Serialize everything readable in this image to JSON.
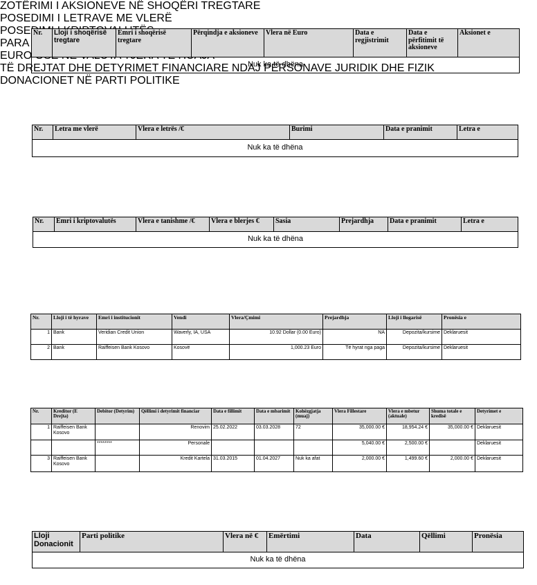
{
  "sections": [
    {
      "title": "ZOTËRIMI I AKSIONEVE NË SHOQËRI TREGTARE",
      "columns": [
        "Nr.",
        "Lloji i shoqërisë tregtare",
        "Emri i shoqërisë tregtare",
        "Përqindja e aksioneve",
        "Vlera në Euro",
        "Data e regjistrimit",
        "Data e përfitimit të aksioneve",
        "Aksionet e"
      ],
      "empty": "Nuk ka të dhëna"
    },
    {
      "title": "POSEDIMI I LETRAVE ME VLERË",
      "columns": [
        "Nr.",
        "Letra me vlerë",
        "Vlera e letrës /€",
        "Burimi",
        "Data e pranimit",
        "Letra e"
      ],
      "empty": "Nuk ka të dhëna"
    },
    {
      "title": "POSEDIMI I KRIPTOVALUTËS",
      "columns": [
        "Nr.",
        "Emri i kriptovalutës",
        "Vlera e tanishme /€",
        "Vlera e blerjes €",
        "Sasia",
        "Prejardhja",
        "Data e pranimit",
        "Letra e"
      ],
      "empty": "Nuk ka të dhëna"
    },
    {
      "title": "PARA TË GATSHME NË LLOGARI RRJEDHËSE, NË DEPOZITA DHE NË HUADHËNIE NË EURO OSE NË VALUTA TJERA TË HUAJA",
      "columns": [
        "Nr.",
        "Lloji i të hyrave",
        "Emri i institucionit",
        "Vendi",
        "Vlera/Çmimi",
        "Prejardhja",
        "Lloji i llogarisë",
        "Pronësia e"
      ],
      "rows": [
        [
          "1",
          "Bank",
          "Veridian Credit Union",
          "Waverly, IA, USA",
          "10.92 Dollar (0.00  Euro)",
          "NA",
          "Depozita/kursime",
          "Deklaruesit"
        ],
        [
          "2",
          "Bank",
          "Raiffeisen Bank Kosovo",
          "Kosovë",
          "1,000.23 Euro",
          "Të hyrat nga paga",
          "Depozita/kursime",
          "Deklaruesit"
        ]
      ]
    },
    {
      "title": "TË DREJTAT DHE DETYRIMET FINANCIARE NDAJ PERSONAVE JURIDIK DHE FIZIK",
      "columns": [
        "Nr.",
        "Kreditor (E Drejta)",
        "Debitor (Detyrim)",
        "Qëllimi i detyrimit financiar",
        "Data e fillimit",
        "Data e mbarimit",
        "Kohëzgjatja (muaj)",
        "Vlera Fillestare",
        "Vlera e mbetur (aktuale)",
        "Shuma totale e kredisë",
        "Detyrimet e"
      ],
      "rows": [
        [
          "1",
          "Raiffeisen Bank Kosovo",
          null,
          "Renovim",
          "25.02.2022",
          "03.03.2028",
          "72",
          "35,000.00 €",
          "18,954.24 €",
          "35,000.00 €",
          "Deklaruesit"
        ],
        [
          null,
          null,
          "********",
          "Personale",
          null,
          null,
          null,
          "5,040.00 €",
          "2,500.00 €",
          null,
          "Deklaruesit"
        ],
        [
          "3",
          "Raiffeisen Bank Kosovo",
          null,
          "Kredit Kartela",
          "31.03.2015",
          "01.04.2027",
          "Nuk ka afat",
          "2,000.00 €",
          "1,499.60 €",
          "2,000.00 €",
          "Deklaruesit"
        ]
      ]
    },
    {
      "title": "DONACIONET NË PARTI POLITIKE",
      "columns": [
        "Lloji Donacionit",
        "Parti politike",
        "Vlera në €",
        "Emërtimi",
        "Data",
        "Qëllimi",
        "Pronësia"
      ],
      "empty": "Nuk ka të dhëna"
    }
  ]
}
